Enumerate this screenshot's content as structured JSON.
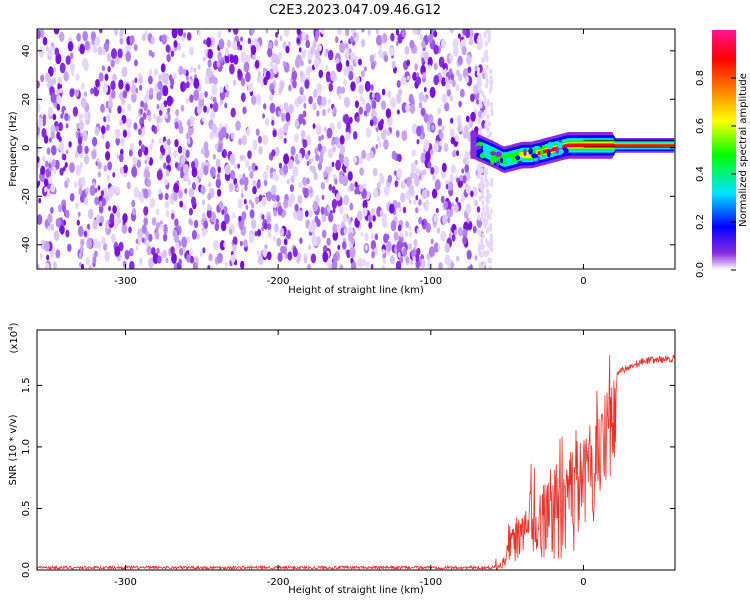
{
  "title": "C2E3.2023.047.09.46.G12",
  "chart_data": [
    {
      "type": "heatmap",
      "xlabel": "Height of straight line (km)",
      "ylabel": "Frequency (Hz)",
      "xlim": [
        -358,
        60
      ],
      "ylim": [
        -50,
        49
      ],
      "xticks": [
        -300,
        -200,
        -100,
        0
      ],
      "xtick_labels": [
        "-300",
        "-200",
        "-100",
        "0"
      ],
      "yticks": [
        -40,
        -20,
        0,
        20,
        40
      ],
      "ytick_labels": [
        "-40",
        "-20",
        "0",
        "20",
        "40"
      ],
      "noise_region_x": [
        -358,
        -65
      ],
      "ridge": {
        "x": [
          -72,
          -65,
          -58,
          -52,
          -46,
          -40,
          -34,
          -28,
          -22,
          -16,
          -10,
          -4,
          2,
          8,
          14,
          20,
          30,
          45,
          60
        ],
        "y": [
          1,
          -1,
          -3,
          -5,
          -4,
          -3,
          -3,
          -2,
          -1,
          0,
          1,
          1,
          1,
          1,
          1,
          1,
          1,
          1,
          1
        ]
      },
      "colorbar": {
        "label": "Normalized spectral amplitude",
        "range": [
          0,
          1
        ],
        "ticks": [
          0.0,
          0.2,
          0.4,
          0.6,
          0.8
        ],
        "tick_labels": [
          "0.0",
          "0.2",
          "0.4",
          "0.6",
          "0.8"
        ],
        "colors": [
          "#ffffff",
          "#8a2be2",
          "#0000ff",
          "#00e5ff",
          "#00ff00",
          "#ffff00",
          "#ff8000",
          "#ff0000",
          "#ff1493"
        ]
      }
    },
    {
      "type": "line",
      "xlabel": "Height of straight line (km)",
      "ylabel": "SNR (10 * v/v)",
      "scale_label": "(x10",
      "scale_exp": "4",
      "scale_close": ")",
      "xlim": [
        -358,
        60
      ],
      "ylim": [
        0,
        1.95
      ],
      "xticks": [
        -300,
        -200,
        -100,
        0
      ],
      "xtick_labels": [
        "-300",
        "-200",
        "-100",
        "0"
      ],
      "yticks": [
        0.0,
        0.5,
        1.0,
        1.5
      ],
      "ytick_labels": [
        "0.0",
        "0.5",
        "1.0",
        "1.5"
      ],
      "color": "#e8302a",
      "series_profile": {
        "x": [
          -358,
          -60,
          -55,
          -50,
          -45,
          -40,
          -30,
          -20,
          -10,
          0,
          10,
          15,
          20,
          30,
          40,
          60
        ],
        "y": [
          0.02,
          0.02,
          0.05,
          0.2,
          0.4,
          0.5,
          0.6,
          0.8,
          1.0,
          1.1,
          1.3,
          1.5,
          1.6,
          1.65,
          1.7,
          1.72
        ]
      }
    }
  ]
}
